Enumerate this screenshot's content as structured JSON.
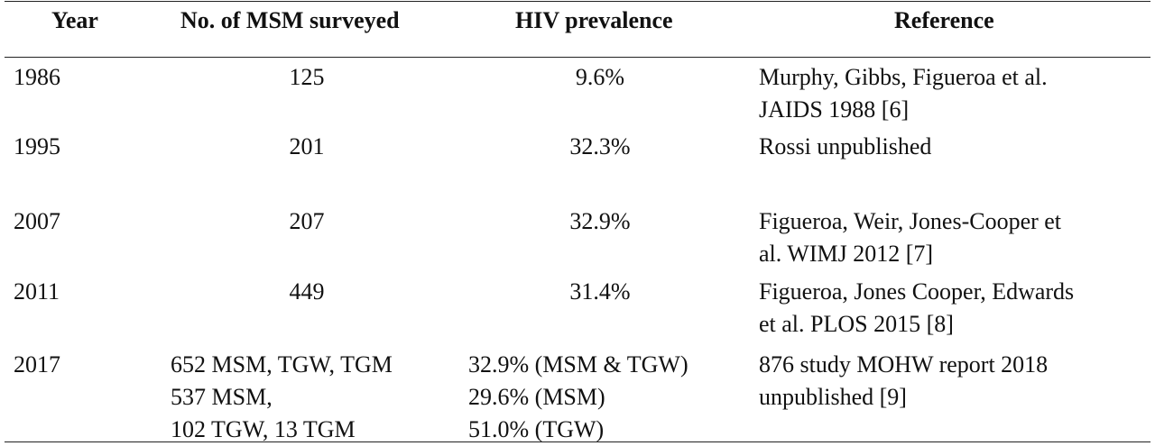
{
  "table": {
    "headers": {
      "year": "Year",
      "surveyed": "No. of MSM surveyed",
      "prevalence": "HIV prevalence",
      "reference": "Reference"
    },
    "rows": [
      {
        "year": "1986",
        "surveyed": [
          "125"
        ],
        "prevalence": [
          "9.6%"
        ],
        "reference": [
          "Murphy, Gibbs, Figueroa et al.",
          "JAIDS 1988 [6]"
        ]
      },
      {
        "year": "1995",
        "surveyed": [
          "201"
        ],
        "prevalence": [
          "32.3%"
        ],
        "reference": [
          "Rossi unpublished"
        ]
      },
      {
        "year": "2007",
        "surveyed": [
          "207"
        ],
        "prevalence": [
          "32.9%"
        ],
        "reference": [
          "Figueroa, Weir, Jones-Cooper et",
          "al. WIMJ 2012 [7]"
        ]
      },
      {
        "year": "2011",
        "surveyed": [
          "449"
        ],
        "prevalence": [
          "31.4%"
        ],
        "reference": [
          "Figueroa, Jones Cooper, Edwards",
          "et al. PLOS 2015 [8]"
        ]
      },
      {
        "year": "2017",
        "surveyed": [
          "652 MSM, TGW, TGM",
          "537 MSM,",
          "102 TGW, 13 TGM"
        ],
        "prevalence": [
          "32.9% (MSM & TGW)",
          "29.6% (MSM)",
          "51.0% (TGW)"
        ],
        "reference": [
          "876 study MOHW report 2018",
          "unpublished [9]"
        ]
      }
    ]
  }
}
